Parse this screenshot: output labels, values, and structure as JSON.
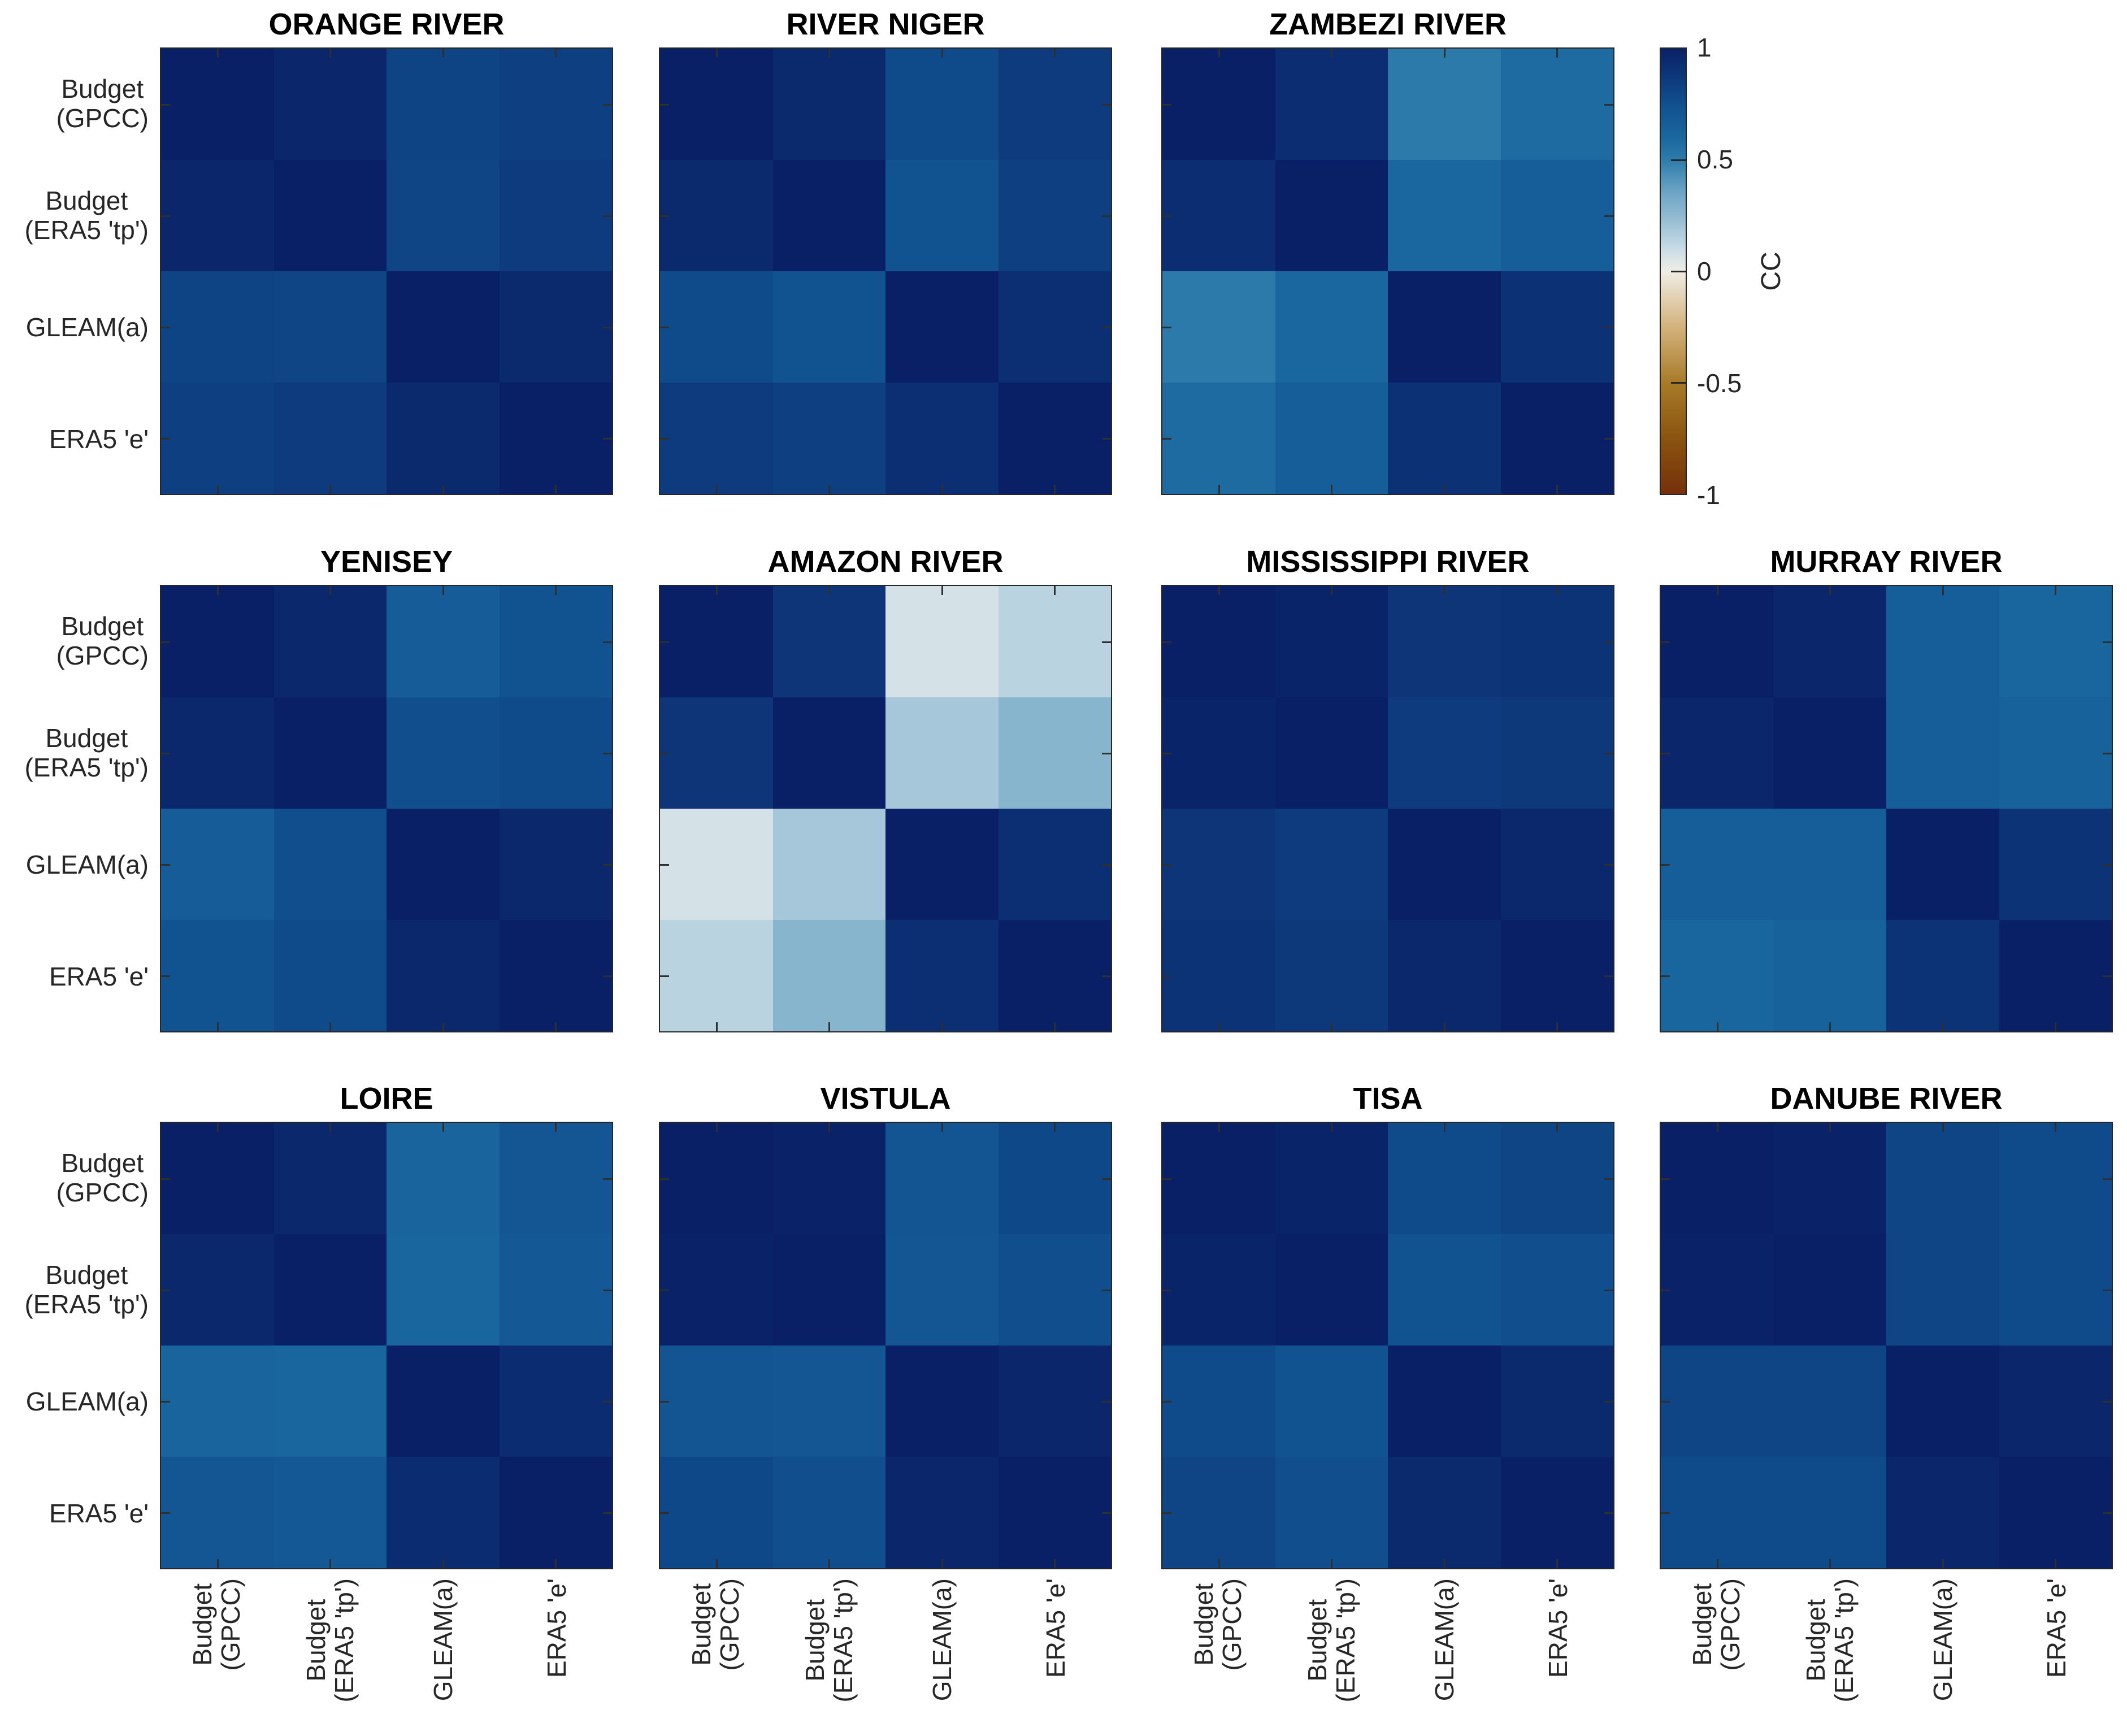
{
  "figure": {
    "background": "#ffffff",
    "title_color": "#000000",
    "axis_color": "#262626",
    "label_color": "#262626"
  },
  "chart_data": {
    "type": "heatmap",
    "description": "Cross-correlation (CC) matrices of evapotranspiration estimates per river basin",
    "variables": [
      "Budget (GPCC)",
      "Budget (ERA5 'tp')",
      "GLEAM(a)",
      "ERA5 'e'"
    ],
    "variable_label_lines": [
      [
        "Budget",
        "(GPCC)"
      ],
      [
        "Budget",
        "(ERA5 'tp')"
      ],
      [
        "GLEAM(a)"
      ],
      [
        "ERA5 'e'"
      ]
    ],
    "value_range": [
      -1,
      1
    ],
    "grid": {
      "rows": 3,
      "cols": 4
    },
    "colorbar": {
      "label": "CC",
      "ticks": [
        "1",
        "0.5",
        "0",
        "-0.5",
        "-1"
      ],
      "tick_values": [
        1,
        0.5,
        0,
        -0.5,
        -1
      ],
      "position": "right-of-first-row"
    },
    "colormap_stops": [
      {
        "v": -1.0,
        "color": "#75300a"
      },
      {
        "v": -0.75,
        "color": "#8a5410"
      },
      {
        "v": -0.5,
        "color": "#a87b28"
      },
      {
        "v": -0.25,
        "color": "#d3b27c"
      },
      {
        "v": 0.0,
        "color": "#efede6"
      },
      {
        "v": 0.1,
        "color": "#c9dce6"
      },
      {
        "v": 0.25,
        "color": "#8fb9d0"
      },
      {
        "v": 0.35,
        "color": "#6ea6c6"
      },
      {
        "v": 0.5,
        "color": "#2e7cab"
      },
      {
        "v": 0.6,
        "color": "#1a679f"
      },
      {
        "v": 0.75,
        "color": "#10508f"
      },
      {
        "v": 1.0,
        "color": "#0a2066"
      }
    ],
    "panels": [
      {
        "title": "ORANGE RIVER",
        "grid_row": 0,
        "grid_col": 0,
        "matrix": [
          [
            1.0,
            0.97,
            0.82,
            0.84
          ],
          [
            0.97,
            1.0,
            0.81,
            0.86
          ],
          [
            0.82,
            0.81,
            1.0,
            0.95
          ],
          [
            0.84,
            0.86,
            0.95,
            1.0
          ]
        ]
      },
      {
        "title": "RIVER NIGER",
        "grid_row": 0,
        "grid_col": 1,
        "matrix": [
          [
            1.0,
            0.95,
            0.78,
            0.86
          ],
          [
            0.95,
            1.0,
            0.74,
            0.84
          ],
          [
            0.78,
            0.74,
            1.0,
            0.92
          ],
          [
            0.86,
            0.84,
            0.92,
            1.0
          ]
        ]
      },
      {
        "title": "ZAMBEZI RIVER",
        "grid_row": 0,
        "grid_col": 2,
        "matrix": [
          [
            1.0,
            0.93,
            0.51,
            0.58
          ],
          [
            0.93,
            1.0,
            0.6,
            0.66
          ],
          [
            0.51,
            0.6,
            1.0,
            0.91
          ],
          [
            0.58,
            0.66,
            0.91,
            1.0
          ]
        ]
      },
      {
        "title": "YENISEY",
        "grid_row": 1,
        "grid_col": 0,
        "matrix": [
          [
            1.0,
            0.96,
            0.67,
            0.74
          ],
          [
            0.96,
            1.0,
            0.76,
            0.78
          ],
          [
            0.67,
            0.76,
            1.0,
            0.96
          ],
          [
            0.74,
            0.78,
            0.96,
            1.0
          ]
        ]
      },
      {
        "title": "AMAZON RIVER",
        "grid_row": 1,
        "grid_col": 1,
        "matrix": [
          [
            1.0,
            0.89,
            0.07,
            0.14
          ],
          [
            0.89,
            1.0,
            0.19,
            0.27
          ],
          [
            0.07,
            0.19,
            1.0,
            0.92
          ],
          [
            0.14,
            0.27,
            0.92,
            1.0
          ]
        ]
      },
      {
        "title": "MISSISSIPPI RIVER",
        "grid_row": 1,
        "grid_col": 2,
        "matrix": [
          [
            1.0,
            0.98,
            0.89,
            0.9
          ],
          [
            0.98,
            1.0,
            0.86,
            0.87
          ],
          [
            0.89,
            0.86,
            1.0,
            0.96
          ],
          [
            0.9,
            0.87,
            0.96,
            1.0
          ]
        ]
      },
      {
        "title": "MURRAY RIVER",
        "grid_row": 1,
        "grid_col": 3,
        "matrix": [
          [
            1.0,
            0.97,
            0.66,
            0.61
          ],
          [
            0.97,
            1.0,
            0.66,
            0.63
          ],
          [
            0.66,
            0.66,
            1.0,
            0.9
          ],
          [
            0.61,
            0.63,
            0.9,
            1.0
          ]
        ]
      },
      {
        "title": "LOIRE",
        "grid_row": 2,
        "grid_col": 0,
        "matrix": [
          [
            1.0,
            0.96,
            0.62,
            0.71
          ],
          [
            0.96,
            1.0,
            0.61,
            0.69
          ],
          [
            0.62,
            0.61,
            1.0,
            0.94
          ],
          [
            0.71,
            0.69,
            0.94,
            1.0
          ]
        ]
      },
      {
        "title": "VISTULA",
        "grid_row": 2,
        "grid_col": 1,
        "matrix": [
          [
            1.0,
            0.99,
            0.72,
            0.79
          ],
          [
            0.99,
            1.0,
            0.71,
            0.76
          ],
          [
            0.72,
            0.71,
            1.0,
            0.97
          ],
          [
            0.79,
            0.76,
            0.97,
            1.0
          ]
        ]
      },
      {
        "title": "TISA",
        "grid_row": 2,
        "grid_col": 2,
        "matrix": [
          [
            1.0,
            0.98,
            0.78,
            0.81
          ],
          [
            0.98,
            1.0,
            0.73,
            0.76
          ],
          [
            0.78,
            0.73,
            1.0,
            0.95
          ],
          [
            0.81,
            0.76,
            0.95,
            1.0
          ]
        ]
      },
      {
        "title": "DANUBE RIVER",
        "grid_row": 2,
        "grid_col": 3,
        "matrix": [
          [
            1.0,
            0.99,
            0.81,
            0.78
          ],
          [
            0.99,
            1.0,
            0.81,
            0.78
          ],
          [
            0.81,
            0.81,
            1.0,
            0.97
          ],
          [
            0.78,
            0.78,
            0.97,
            1.0
          ]
        ]
      }
    ]
  }
}
